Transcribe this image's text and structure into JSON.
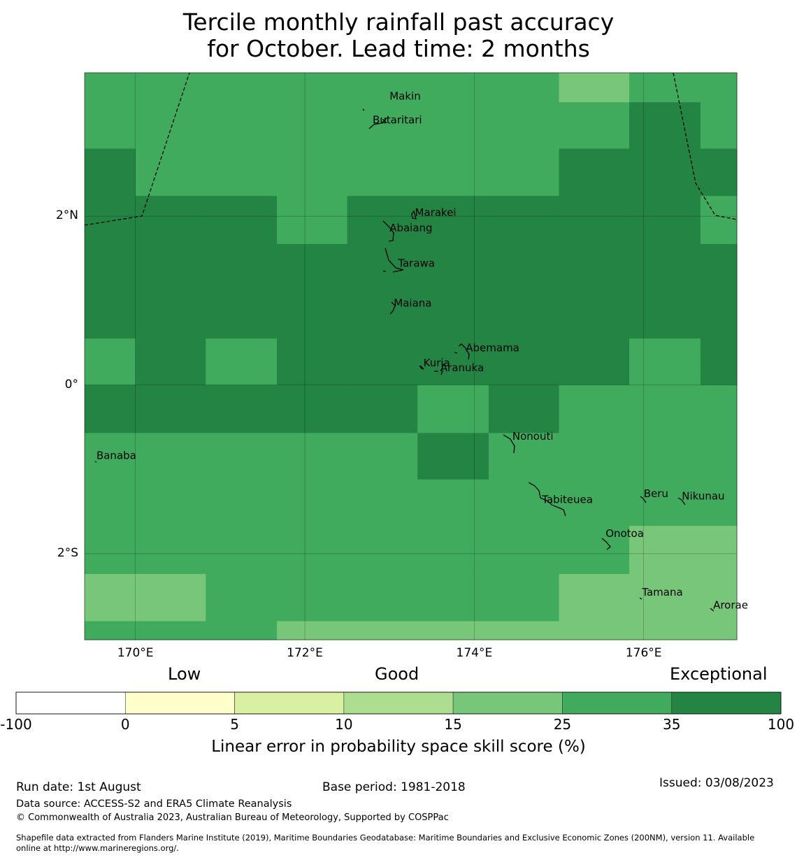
{
  "title_line1": "Tercile monthly rainfall past accuracy",
  "title_line2": "for October. Lead time: 2 months",
  "map": {
    "lon_range": [
      169.4,
      177.1
    ],
    "lat_range": [
      -3.02,
      3.7
    ],
    "lon_ticks": [
      170,
      172,
      174,
      176
    ],
    "lat_ticks": [
      2,
      0,
      -2
    ],
    "lon_tick_labels": [
      "170°E",
      "172°E",
      "174°E",
      "176°E"
    ],
    "lat_tick_labels": [
      "2°N",
      "0°",
      "2°S"
    ],
    "grid_lon_edges": [
      169.4,
      170.0,
      170.83,
      171.67,
      172.5,
      173.33,
      174.17,
      175.0,
      175.83,
      176.67,
      177.1
    ],
    "grid_lat_edges": [
      3.7,
      3.35,
      2.8,
      2.24,
      1.67,
      1.12,
      0.55,
      0.0,
      -0.57,
      -1.12,
      -1.67,
      -2.24,
      -2.8,
      -3.02
    ],
    "skill_category_grid": [
      [
        3,
        3,
        3,
        3,
        3,
        3,
        3,
        2,
        3,
        3
      ],
      [
        3,
        3,
        3,
        3,
        3,
        3,
        3,
        3,
        4,
        3
      ],
      [
        4,
        3,
        3,
        3,
        3,
        3,
        3,
        4,
        4,
        4
      ],
      [
        4,
        4,
        4,
        3,
        4,
        4,
        4,
        4,
        4,
        3
      ],
      [
        4,
        4,
        4,
        4,
        4,
        4,
        4,
        4,
        4,
        4
      ],
      [
        4,
        4,
        4,
        4,
        4,
        4,
        4,
        4,
        4,
        4
      ],
      [
        3,
        4,
        3,
        4,
        4,
        4,
        4,
        4,
        3,
        4
      ],
      [
        4,
        4,
        4,
        4,
        4,
        3,
        4,
        3,
        3,
        3
      ],
      [
        3,
        3,
        3,
        3,
        3,
        4,
        3,
        3,
        3,
        3
      ],
      [
        3,
        3,
        3,
        3,
        3,
        3,
        3,
        3,
        3,
        3
      ],
      [
        3,
        3,
        3,
        3,
        3,
        3,
        3,
        3,
        2,
        2
      ],
      [
        2,
        2,
        3,
        3,
        3,
        3,
        3,
        2,
        2,
        2
      ],
      [
        3,
        3,
        3,
        2,
        2,
        2,
        2,
        2,
        2,
        2
      ]
    ],
    "islands": [
      {
        "name": "Makin",
        "lon": 173.0,
        "lat": 3.38
      },
      {
        "name": "Butaritari",
        "lon": 172.8,
        "lat": 3.1
      },
      {
        "name": "Marakei",
        "lon": 173.3,
        "lat": 2.0
      },
      {
        "name": "Abaiang",
        "lon": 173.0,
        "lat": 1.82
      },
      {
        "name": "Tarawa",
        "lon": 173.1,
        "lat": 1.4
      },
      {
        "name": "Maiana",
        "lon": 173.05,
        "lat": 0.93
      },
      {
        "name": "Abemama",
        "lon": 173.9,
        "lat": 0.4
      },
      {
        "name": "Kuria",
        "lon": 173.4,
        "lat": 0.22
      },
      {
        "name": "Aranuka",
        "lon": 173.6,
        "lat": 0.16
      },
      {
        "name": "Nonouti",
        "lon": 174.45,
        "lat": -0.65
      },
      {
        "name": "Banaba",
        "lon": 169.54,
        "lat": -0.88
      },
      {
        "name": "Tabiteuea",
        "lon": 174.8,
        "lat": -1.4
      },
      {
        "name": "Beru",
        "lon": 176.0,
        "lat": -1.33
      },
      {
        "name": "Nikunau",
        "lon": 176.45,
        "lat": -1.36
      },
      {
        "name": "Onotoa",
        "lon": 175.55,
        "lat": -1.8
      },
      {
        "name": "Tamana",
        "lon": 175.98,
        "lat": -2.5
      },
      {
        "name": "Arorae",
        "lon": 176.82,
        "lat": -2.65
      }
    ]
  },
  "colorbar": {
    "category_labels": [
      "Low",
      "Good",
      "Exceptional"
    ],
    "ticks": [
      "-100",
      "0",
      "5",
      "10",
      "15",
      "25",
      "35",
      "100"
    ],
    "colors": [
      "#ffffff",
      "#ffffcc",
      "#d9f0a3",
      "#addd8e",
      "#78c679",
      "#41ab5d",
      "#238443"
    ],
    "label": "Linear error in probability space skill score (%)"
  },
  "footer": {
    "run_date": "Run date: 1st August",
    "base_period": "Base period: 1981-2018",
    "issued": "Issued: 03/08/2023",
    "data_source": "Data source: ACCESS-S2 and ERA5 Climate Reanalysis",
    "copyright": "© Commonwealth of Australia 2023, Australian Bureau of Meteorology, Supported by COSPPac",
    "shapefile_line1": "Shapefile data extracted from Flanders Marine Institute (2019), Maritime Boundaries Geodatabase: Maritime Boundaries and Exclusive Economic Zones (200NM), version 11. Available",
    "shapefile_line2": "online at http://www.marineregions.org/."
  }
}
